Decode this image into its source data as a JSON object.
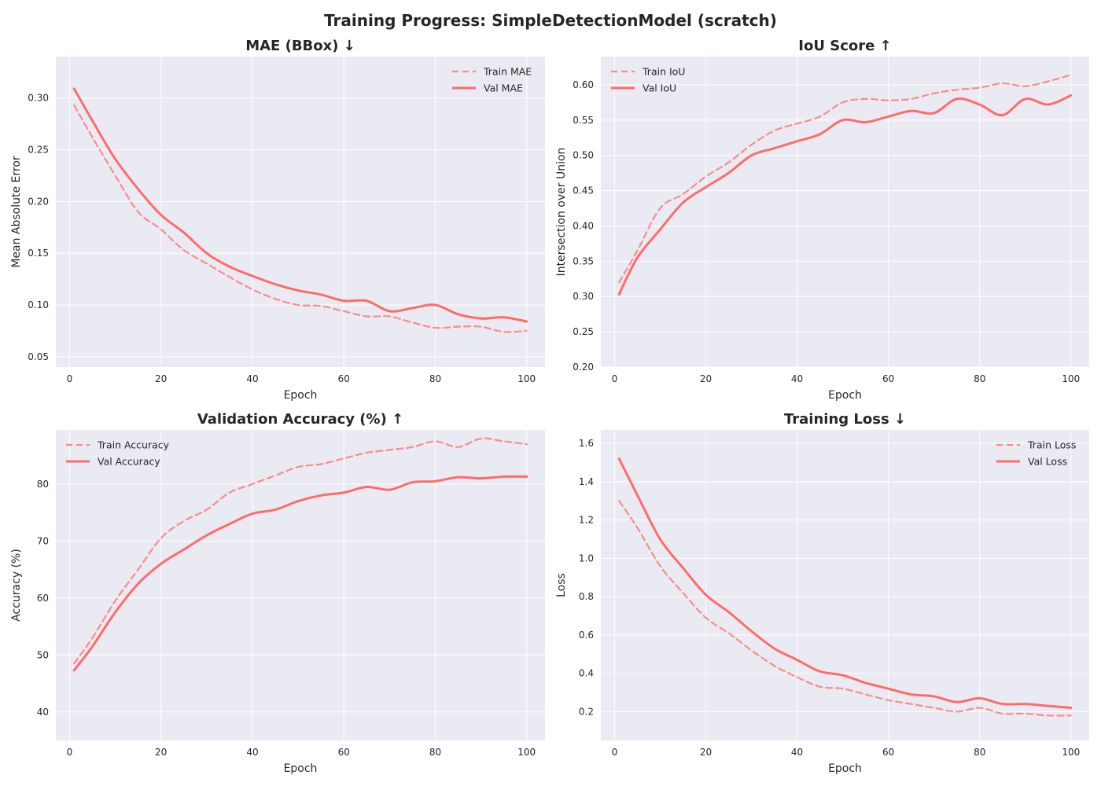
{
  "suptitle": "Training Progress: SimpleDetectionModel (scratch)",
  "colors": {
    "series": "#ff6b6b",
    "background": "#eaeaf2",
    "grid": "#ffffff"
  },
  "chart_data": [
    {
      "type": "line",
      "title": "MAE (BBox) ↓",
      "xlabel": "Epoch",
      "ylabel": "Mean Absolute Error",
      "xlim": [
        -3,
        104
      ],
      "ylim": [
        0.04,
        0.34
      ],
      "xticks": [
        0,
        20,
        40,
        60,
        80,
        100
      ],
      "yticks": [
        0.05,
        0.1,
        0.15,
        0.2,
        0.25,
        0.3
      ],
      "tick_decimals": 2,
      "legend_loc": "top-right",
      "grid": true,
      "x": [
        1,
        5,
        10,
        15,
        20,
        25,
        30,
        35,
        40,
        45,
        50,
        55,
        60,
        65,
        70,
        75,
        80,
        85,
        90,
        95,
        100
      ],
      "series": [
        {
          "name": "Train MAE",
          "style": "dashed",
          "values": [
            0.293,
            0.262,
            0.225,
            0.19,
            0.173,
            0.153,
            0.14,
            0.127,
            0.115,
            0.106,
            0.1,
            0.099,
            0.094,
            0.089,
            0.089,
            0.083,
            0.078,
            0.079,
            0.079,
            0.074,
            0.075
          ]
        },
        {
          "name": "Val MAE",
          "style": "solid",
          "values": [
            0.309,
            0.278,
            0.241,
            0.212,
            0.187,
            0.17,
            0.15,
            0.137,
            0.128,
            0.12,
            0.114,
            0.11,
            0.104,
            0.104,
            0.094,
            0.097,
            0.1,
            0.091,
            0.087,
            0.088,
            0.084
          ]
        }
      ]
    },
    {
      "type": "line",
      "title": "IoU Score ↑",
      "xlabel": "Epoch",
      "ylabel": "Intersection over Union",
      "xlim": [
        -3,
        104
      ],
      "ylim": [
        0.2,
        0.64
      ],
      "xticks": [
        0,
        20,
        40,
        60,
        80,
        100
      ],
      "yticks": [
        0.2,
        0.25,
        0.3,
        0.35,
        0.4,
        0.45,
        0.5,
        0.55,
        0.6
      ],
      "tick_decimals": 2,
      "legend_loc": "top-left",
      "grid": true,
      "x": [
        1,
        5,
        10,
        15,
        20,
        25,
        30,
        35,
        40,
        45,
        50,
        55,
        60,
        65,
        70,
        75,
        80,
        85,
        90,
        95,
        100
      ],
      "series": [
        {
          "name": "Train IoU",
          "style": "dashed",
          "values": [
            0.32,
            0.365,
            0.425,
            0.445,
            0.47,
            0.49,
            0.515,
            0.535,
            0.545,
            0.555,
            0.575,
            0.58,
            0.578,
            0.58,
            0.588,
            0.593,
            0.596,
            0.602,
            0.598,
            0.605,
            0.614
          ]
        },
        {
          "name": "Val IoU",
          "style": "solid",
          "values": [
            0.303,
            0.355,
            0.395,
            0.433,
            0.455,
            0.475,
            0.5,
            0.51,
            0.52,
            0.53,
            0.55,
            0.547,
            0.555,
            0.563,
            0.56,
            0.58,
            0.572,
            0.557,
            0.58,
            0.572,
            0.585
          ]
        }
      ]
    },
    {
      "type": "line",
      "title": "Validation Accuracy (%) ↑",
      "xlabel": "Epoch",
      "ylabel": "Accuracy (%)",
      "xlim": [
        -3,
        104
      ],
      "ylim": [
        35,
        89.5
      ],
      "xticks": [
        0,
        20,
        40,
        60,
        80,
        100
      ],
      "yticks": [
        40,
        50,
        60,
        70,
        80
      ],
      "tick_decimals": 0,
      "legend_loc": "top-left",
      "grid": true,
      "x": [
        1,
        5,
        10,
        15,
        20,
        25,
        30,
        35,
        40,
        45,
        50,
        55,
        60,
        65,
        70,
        75,
        80,
        85,
        90,
        95,
        100
      ],
      "series": [
        {
          "name": "Train Accuracy",
          "style": "dashed",
          "values": [
            48.5,
            53.0,
            59.5,
            65.0,
            70.5,
            73.5,
            75.5,
            78.5,
            80.0,
            81.5,
            83.0,
            83.5,
            84.5,
            85.5,
            86.0,
            86.5,
            87.5,
            86.5,
            88.0,
            87.5,
            87.0
          ]
        },
        {
          "name": "Val Accuracy",
          "style": "solid",
          "values": [
            47.3,
            51.5,
            57.5,
            62.5,
            66.0,
            68.5,
            71.0,
            73.0,
            74.8,
            75.5,
            77.0,
            78.0,
            78.5,
            79.5,
            79.0,
            80.3,
            80.5,
            81.2,
            81.0,
            81.3,
            81.3
          ]
        }
      ]
    },
    {
      "type": "line",
      "title": "Training Loss ↓",
      "xlabel": "Epoch",
      "ylabel": "Loss",
      "xlim": [
        -3,
        104
      ],
      "ylim": [
        0.05,
        1.67
      ],
      "xticks": [
        0,
        20,
        40,
        60,
        80,
        100
      ],
      "yticks": [
        0.2,
        0.4,
        0.6,
        0.8,
        1.0,
        1.2,
        1.4,
        1.6
      ],
      "tick_decimals": 1,
      "legend_loc": "top-right",
      "grid": true,
      "x": [
        1,
        5,
        10,
        15,
        20,
        25,
        30,
        35,
        40,
        45,
        50,
        55,
        60,
        65,
        70,
        75,
        80,
        85,
        90,
        95,
        100
      ],
      "series": [
        {
          "name": "Train Loss",
          "style": "dashed",
          "values": [
            1.3,
            1.16,
            0.96,
            0.82,
            0.69,
            0.61,
            0.52,
            0.44,
            0.38,
            0.33,
            0.32,
            0.29,
            0.26,
            0.24,
            0.22,
            0.2,
            0.22,
            0.19,
            0.19,
            0.18,
            0.18
          ]
        },
        {
          "name": "Val Loss",
          "style": "solid",
          "values": [
            1.52,
            1.33,
            1.1,
            0.95,
            0.81,
            0.72,
            0.62,
            0.53,
            0.47,
            0.41,
            0.39,
            0.35,
            0.32,
            0.29,
            0.28,
            0.25,
            0.27,
            0.24,
            0.24,
            0.23,
            0.22
          ]
        }
      ]
    }
  ]
}
